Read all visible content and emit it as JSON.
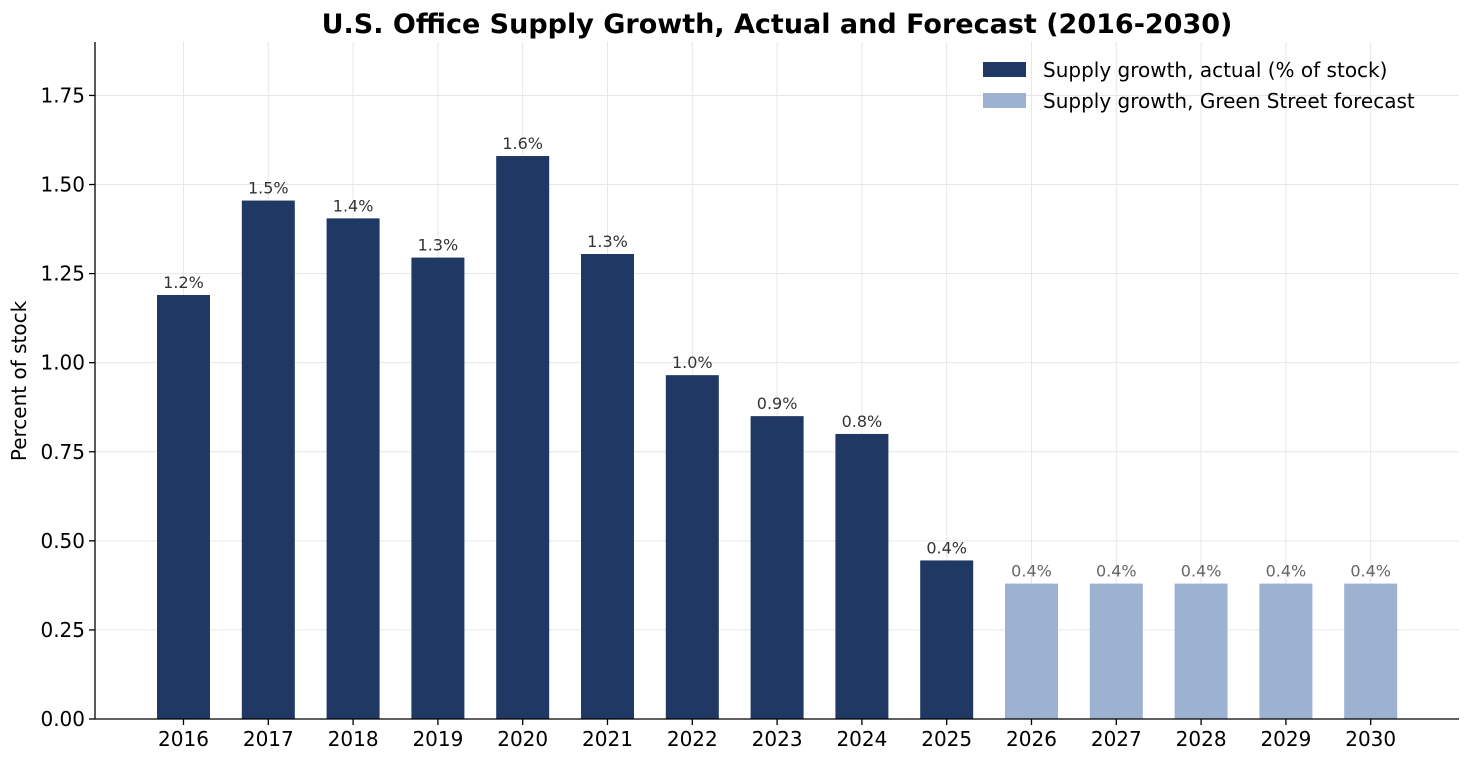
{
  "chart_data": {
    "type": "bar",
    "title": "U.S. Office Supply Growth, Actual and Forecast (2016-2030)",
    "xlabel": "",
    "ylabel": "Percent of stock",
    "ylim": [
      0,
      1.9
    ],
    "yticks": [
      "0.00",
      "0.25",
      "0.50",
      "0.75",
      "1.00",
      "1.25",
      "1.50",
      "1.75"
    ],
    "categories": [
      "2016",
      "2017",
      "2018",
      "2019",
      "2020",
      "2021",
      "2022",
      "2023",
      "2024",
      "2025",
      "2026",
      "2027",
      "2028",
      "2029",
      "2030"
    ],
    "series": [
      {
        "name": "Supply growth, actual (% of stock)",
        "color": "#203864",
        "label_color": "#333333",
        "values": [
          1.19,
          1.455,
          1.405,
          1.295,
          1.58,
          1.305,
          0.965,
          0.85,
          0.8,
          0.445,
          null,
          null,
          null,
          null,
          null
        ],
        "labels": [
          "1.2%",
          "1.5%",
          "1.4%",
          "1.3%",
          "1.6%",
          "1.3%",
          "1.0%",
          "0.9%",
          "0.8%",
          "0.4%",
          "",
          "",
          "",
          "",
          ""
        ]
      },
      {
        "name": "Supply growth, Green Street forecast",
        "color": "#9db1d1",
        "label_color": "#666666",
        "values": [
          null,
          null,
          null,
          null,
          null,
          null,
          null,
          null,
          null,
          null,
          0.38,
          0.38,
          0.38,
          0.38,
          0.38
        ],
        "labels": [
          "",
          "",
          "",
          "",
          "",
          "",
          "",
          "",
          "",
          "",
          "0.4%",
          "0.4%",
          "0.4%",
          "0.4%",
          "0.4%"
        ]
      }
    ],
    "grid": true,
    "legend_position": "top-right"
  }
}
